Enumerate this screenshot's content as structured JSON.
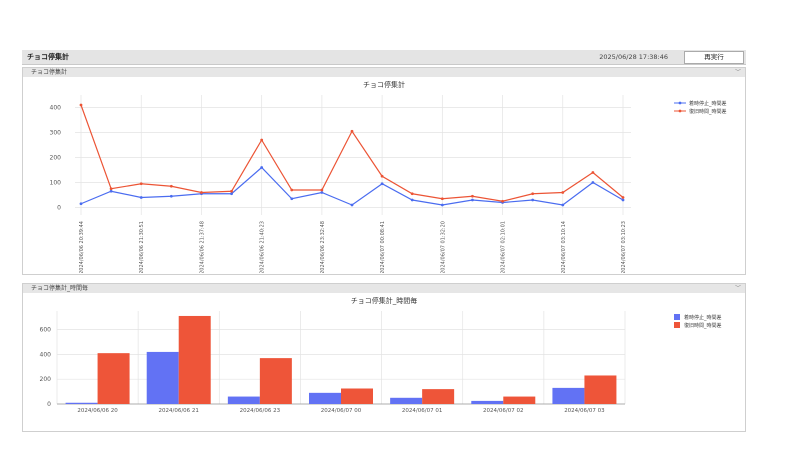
{
  "app": {
    "title": "チョコ停集計",
    "timestamp": "2025/06/28 17:38:46",
    "rerun_label": "再実行"
  },
  "panel1": {
    "header": "チョコ停集計",
    "chart_title": "チョコ停集計"
  },
  "panel2": {
    "header": "チョコ停集計_時間毎",
    "chart_title": "チョコ停集計_時間毎"
  },
  "chart_data": [
    {
      "type": "line",
      "title": "チョコ停集計",
      "ylim": [
        -30,
        450
      ],
      "yticks": [
        0,
        100,
        200,
        300,
        400
      ],
      "grid": true,
      "legend_position": "top-right",
      "x_tick_labels": [
        "2024/06/06 20:39:44",
        "2024/06/06 21:30:51",
        "2024/06/06 21:37:48",
        "2024/06/06 21:40:23",
        "2024/06/06 23:32:48",
        "2024/06/07 00:08:41",
        "2024/06/07 01:32:20",
        "2024/06/07 02:10:01",
        "2024/06/07 03:10:14",
        "2024/06/07 03:10:23"
      ],
      "series": [
        {
          "name": "着時停止_時間差",
          "color": "#4a6cf0",
          "values": [
            15,
            65,
            40,
            45,
            55,
            55,
            160,
            35,
            60,
            10,
            95,
            30,
            10,
            30,
            20,
            30,
            10,
            100,
            30
          ]
        },
        {
          "name": "復旧時間_時間差",
          "color": "#ec5435",
          "values": [
            410,
            75,
            95,
            85,
            60,
            65,
            270,
            70,
            70,
            305,
            125,
            55,
            35,
            45,
            25,
            55,
            60,
            140,
            40
          ]
        }
      ]
    },
    {
      "type": "bar",
      "title": "チョコ停集計_時間毎",
      "ylim": [
        0,
        750
      ],
      "yticks": [
        0,
        200,
        400,
        600
      ],
      "grid": true,
      "legend_position": "top-right",
      "categories": [
        "2024/06/06 20",
        "2024/06/06 21",
        "2024/06/06 23",
        "2024/06/07 00",
        "2024/06/07 01",
        "2024/06/07 02",
        "2024/06/07 03"
      ],
      "series": [
        {
          "name": "着時停止_時間差",
          "color": "#6272f4",
          "values": [
            10,
            420,
            60,
            90,
            50,
            25,
            130
          ]
        },
        {
          "name": "復旧時間_時間差",
          "color": "#ee5539",
          "values": [
            410,
            710,
            370,
            125,
            120,
            60,
            230
          ]
        }
      ]
    }
  ]
}
